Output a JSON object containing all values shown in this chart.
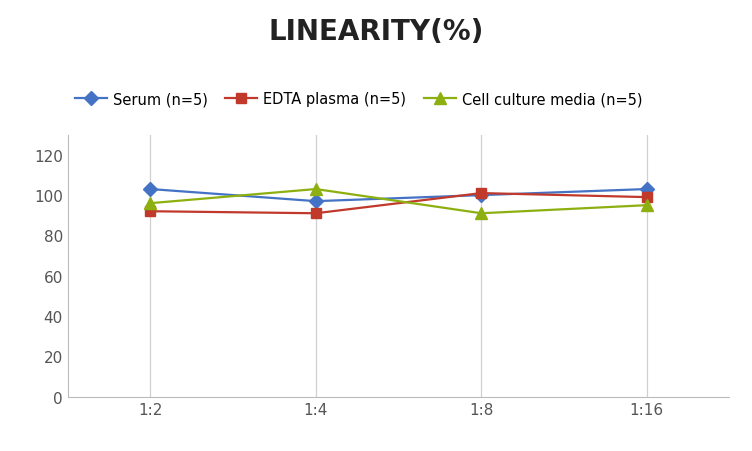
{
  "title": "LINEARITY(%)",
  "x_labels": [
    "1:2",
    "1:4",
    "1:8",
    "1:16"
  ],
  "x_positions": [
    0,
    1,
    2,
    3
  ],
  "series": [
    {
      "label": "Serum (n=5)",
      "values": [
        103,
        97,
        100,
        103
      ],
      "color": "#4472C4",
      "marker": "D",
      "markersize": 7,
      "linewidth": 1.6
    },
    {
      "label": "EDTA plasma (n=5)",
      "values": [
        92,
        91,
        101,
        99
      ],
      "color": "#C0392B",
      "marker": "s",
      "markersize": 7,
      "linewidth": 1.6
    },
    {
      "label": "Cell culture media (n=5)",
      "values": [
        96,
        103,
        91,
        95
      ],
      "color": "#8DB010",
      "marker": "^",
      "markersize": 8,
      "linewidth": 1.6
    }
  ],
  "ylim": [
    0,
    130
  ],
  "yticks": [
    0,
    20,
    40,
    60,
    80,
    100,
    120
  ],
  "grid_color": "#D0D0D0",
  "background_color": "#FFFFFF",
  "title_fontsize": 20,
  "legend_fontsize": 10.5,
  "tick_fontsize": 11
}
